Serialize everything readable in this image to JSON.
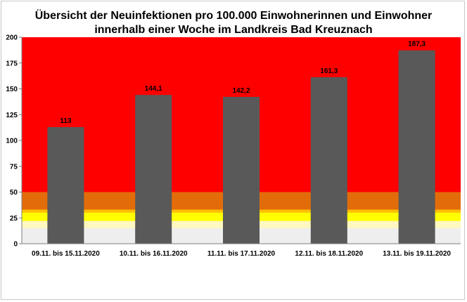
{
  "chart_data": {
    "type": "bar",
    "title_lines": [
      "Übersicht der Neuinfektionen pro 100.000 Einwohnerinnen und Einwohner",
      "innerhalb einer Woche im Landkreis Bad Kreuznach"
    ],
    "categories": [
      "09.11. bis 15.11.2020",
      "10.11. bis 16.11.2020",
      "11.11. bis 17.11.2020",
      "12.11. bis 18.11.2020",
      "13.11. bis 19.11.2020"
    ],
    "values": [
      113,
      144.1,
      142.2,
      161.3,
      187.3
    ],
    "data_labels": [
      "113",
      "144,1",
      "142,2",
      "161,3",
      "187,3"
    ],
    "y_ticks": [
      0,
      25,
      50,
      75,
      100,
      125,
      150,
      175,
      200
    ],
    "ylim": [
      0,
      200
    ],
    "bar_color": "#595959",
    "grid": false,
    "background_bands": [
      {
        "from": 0,
        "to": 15,
        "color": "#eeeeee"
      },
      {
        "from": 15,
        "to": 22,
        "color": "#fff7c0"
      },
      {
        "from": 22,
        "to": 30,
        "color": "#ffff00"
      },
      {
        "from": 30,
        "to": 33,
        "color": "#ffc000"
      },
      {
        "from": 33,
        "to": 50,
        "color": "#e36c0a"
      },
      {
        "from": 50,
        "to": 200,
        "color": "#ff0000"
      }
    ]
  }
}
